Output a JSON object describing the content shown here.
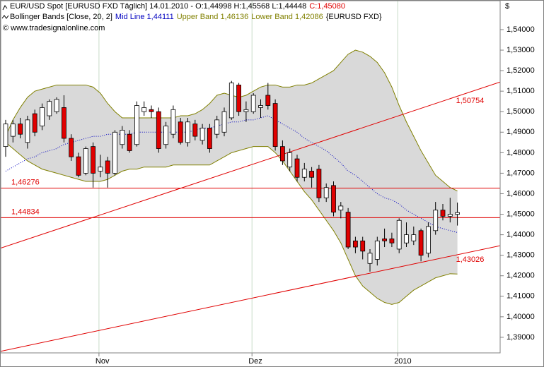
{
  "chart_data": {
    "type": "candlestick",
    "title": "EUR/USD Spot [EURUSD FXD  Täglich] 14.01.2010 - O:1,44998 H:1,45568 L:1,44448",
    "title_close": "C:1,45080",
    "indicator": "Bollinger Bands [Close, 20, 2]",
    "instrument": "{EURUSD FXD}",
    "copyright": "© www.tradesignalonline.com",
    "currency": "$",
    "categories": [
      null,
      null,
      null,
      null,
      null,
      null,
      null,
      null,
      null,
      null,
      null,
      null,
      null,
      "Nov",
      null,
      null,
      null,
      null,
      null,
      null,
      null,
      null,
      null,
      null,
      null,
      null,
      null,
      null,
      null,
      null,
      null,
      null,
      null,
      null,
      "Dez",
      null,
      null,
      null,
      null,
      null,
      null,
      null,
      null,
      null,
      null,
      null,
      null,
      null,
      null,
      null,
      null,
      null,
      null,
      null,
      "2010",
      null,
      null,
      null,
      null,
      null,
      null,
      null,
      null
    ],
    "open": [
      1.483,
      1.488,
      1.494,
      1.485,
      1.499,
      1.493,
      1.498,
      1.5,
      1.502,
      1.487,
      1.478,
      1.47,
      1.483,
      1.471,
      1.476,
      1.47,
      1.484,
      1.489,
      1.484,
      1.5,
      1.501,
      1.5,
      1.484,
      1.489,
      1.495,
      1.485,
      1.494,
      1.486,
      1.492,
      1.489,
      1.49,
      1.497,
      1.513,
      1.5,
      1.5,
      1.502,
      1.508,
      1.504,
      1.483,
      1.473,
      1.477,
      1.468,
      1.471,
      1.472,
      1.458,
      1.464,
      1.452,
      1.451,
      1.437,
      1.437,
      1.426,
      1.428,
      1.438,
      1.438,
      1.433,
      1.436,
      1.437,
      1.442,
      1.431,
      1.442,
      1.452,
      1.449,
      1.44998
    ],
    "high": [
      1.496,
      1.496,
      1.497,
      1.498,
      1.501,
      1.504,
      1.506,
      1.507,
      1.508,
      1.489,
      1.48,
      1.483,
      1.485,
      1.479,
      1.478,
      1.491,
      1.493,
      1.491,
      1.505,
      1.505,
      1.503,
      1.502,
      1.495,
      1.503,
      1.497,
      1.497,
      1.496,
      1.494,
      1.494,
      1.498,
      1.502,
      1.515,
      1.514,
      1.505,
      1.509,
      1.506,
      1.514,
      1.506,
      1.486,
      1.482,
      1.479,
      1.475,
      1.473,
      1.474,
      1.465,
      1.466,
      1.456,
      1.453,
      1.439,
      1.439,
      1.433,
      1.439,
      1.443,
      1.441,
      1.448,
      1.446,
      1.444,
      1.443,
      1.446,
      1.456,
      1.455,
      1.458,
      1.45568
    ],
    "low": [
      1.478,
      1.485,
      1.487,
      1.482,
      1.488,
      1.491,
      1.496,
      1.499,
      1.485,
      1.476,
      1.468,
      1.469,
      1.463,
      1.468,
      1.463,
      1.469,
      1.482,
      1.48,
      1.483,
      1.498,
      1.497,
      1.48,
      1.482,
      1.487,
      1.484,
      1.483,
      1.486,
      1.484,
      1.48,
      1.487,
      1.488,
      1.496,
      1.498,
      1.495,
      1.499,
      1.497,
      1.501,
      1.481,
      1.474,
      1.471,
      1.466,
      1.466,
      1.463,
      1.456,
      1.456,
      1.449,
      1.448,
      1.433,
      1.431,
      1.428,
      1.422,
      1.425,
      1.434,
      1.434,
      1.431,
      1.434,
      1.435,
      1.427,
      1.429,
      1.44,
      1.447,
      1.446,
      1.44448
    ],
    "close": [
      1.494,
      1.494,
      1.489,
      1.496,
      1.49,
      1.502,
      1.505,
      1.506,
      1.487,
      1.478,
      1.469,
      1.482,
      1.47,
      1.473,
      1.47,
      1.49,
      1.491,
      1.481,
      1.503,
      1.502,
      1.5,
      1.482,
      1.493,
      1.501,
      1.485,
      1.495,
      1.488,
      1.492,
      1.482,
      1.496,
      1.5,
      1.514,
      1.5,
      1.501,
      1.508,
      1.503,
      1.503,
      1.483,
      1.476,
      1.48,
      1.468,
      1.472,
      1.468,
      1.458,
      1.463,
      1.451,
      1.454,
      1.434,
      1.434,
      1.432,
      1.431,
      1.437,
      1.437,
      1.436,
      1.447,
      1.44,
      1.44,
      1.43,
      1.444,
      1.452,
      1.449,
      1.45,
      1.4508
    ],
    "up_color": "#ffffff",
    "down_color": "#e00000",
    "bands": [
      {
        "name": "Mid Line 1,44111",
        "color": "#0000c0",
        "values": [
          1.471,
          1.473,
          1.475,
          1.477,
          1.478,
          1.48,
          1.481,
          1.482,
          1.484,
          1.485,
          1.486,
          1.487,
          1.488,
          1.488,
          1.489,
          1.489,
          1.489,
          1.489,
          1.49,
          1.49,
          1.49,
          1.49,
          1.49,
          1.49,
          1.49,
          1.49,
          1.491,
          1.492,
          1.492,
          1.493,
          1.494,
          1.495,
          1.495,
          1.496,
          1.496,
          1.497,
          1.498,
          1.496,
          1.494,
          1.492,
          1.49,
          1.487,
          1.485,
          1.483,
          1.481,
          1.478,
          1.475,
          1.471,
          1.469,
          1.466,
          1.463,
          1.46,
          1.458,
          1.457,
          1.455,
          1.452,
          1.45,
          1.448,
          1.446,
          1.444,
          1.443,
          1.442,
          1.44111
        ]
      },
      {
        "name": "Upper Band 1,46136",
        "color": "#808000",
        "values": [
          1.488,
          1.496,
          1.502,
          1.507,
          1.51,
          1.511,
          1.512,
          1.513,
          1.513,
          1.513,
          1.513,
          1.513,
          1.512,
          1.509,
          1.504,
          1.5,
          1.497,
          1.497,
          1.497,
          1.497,
          1.497,
          1.497,
          1.497,
          1.497,
          1.498,
          1.498,
          1.499,
          1.501,
          1.504,
          1.508,
          1.509,
          1.508,
          1.507,
          1.508,
          1.51,
          1.512,
          1.513,
          1.513,
          1.512,
          1.512,
          1.513,
          1.513,
          1.514,
          1.516,
          1.518,
          1.52,
          1.524,
          1.528,
          1.53,
          1.529,
          1.527,
          1.524,
          1.519,
          1.512,
          1.503,
          1.495,
          1.488,
          1.481,
          1.475,
          1.469,
          1.466,
          1.463,
          1.46136
        ]
      },
      {
        "name": "Lower Band 1,42086",
        "color": "#808000",
        "values": [
          1.485,
          1.482,
          1.479,
          1.476,
          1.474,
          1.472,
          1.471,
          1.47,
          1.469,
          1.468,
          1.467,
          1.466,
          1.466,
          1.466,
          1.467,
          1.469,
          1.471,
          1.472,
          1.472,
          1.473,
          1.473,
          1.473,
          1.473,
          1.474,
          1.474,
          1.474,
          1.474,
          1.474,
          1.474,
          1.476,
          1.478,
          1.48,
          1.481,
          1.482,
          1.483,
          1.483,
          1.483,
          1.48,
          1.476,
          1.471,
          1.466,
          1.461,
          1.457,
          1.452,
          1.447,
          1.442,
          1.436,
          1.428,
          1.42,
          1.415,
          1.412,
          1.409,
          1.407,
          1.406,
          1.407,
          1.41,
          1.413,
          1.415,
          1.417,
          1.419,
          1.42,
          1.421,
          1.42086
        ]
      }
    ],
    "band_fill": "#d9d9d9",
    "hlines": [
      {
        "value": 1.46276,
        "label": "1,46276"
      },
      {
        "value": 1.44834,
        "label": "1,44834"
      }
    ],
    "trendlines": [
      {
        "start": 1.4343,
        "end": {
          "value": 1.50754,
          "label": "1,50754"
        }
      },
      {
        "start": 1.3837,
        "end": {
          "value": 1.43026,
          "label": "1,43026"
        }
      }
    ],
    "line_color": "#e00000",
    "ylim": [
      1.3824,
      1.5541
    ],
    "yticks": [
      {
        "value": 1.39,
        "label": "1,39000"
      },
      {
        "value": 1.4,
        "label": "1,40000"
      },
      {
        "value": 1.41,
        "label": "1,41000"
      },
      {
        "value": 1.42,
        "label": "1,42000"
      },
      {
        "value": 1.43,
        "label": "1,43000"
      },
      {
        "value": 1.44,
        "label": "1,44000"
      },
      {
        "value": 1.45,
        "label": "1,45000"
      },
      {
        "value": 1.46,
        "label": "1,46000"
      },
      {
        "value": 1.47,
        "label": "1,47000"
      },
      {
        "value": 1.48,
        "label": "1,48000"
      },
      {
        "value": 1.49,
        "label": "1,49000"
      },
      {
        "value": 1.5,
        "label": "1,50000"
      },
      {
        "value": 1.51,
        "label": "1,51000"
      },
      {
        "value": 1.52,
        "label": "1,52000"
      },
      {
        "value": 1.53,
        "label": "1,53000"
      },
      {
        "value": 1.54,
        "label": "1,54000"
      }
    ]
  }
}
